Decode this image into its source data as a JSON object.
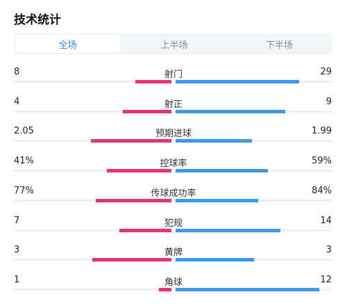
{
  "title": "技术统计",
  "tabs": [
    {
      "label": "全场",
      "active": true
    },
    {
      "label": "上半场",
      "active": false
    },
    {
      "label": "下半场",
      "active": false
    }
  ],
  "colors": {
    "home": "#e8336b",
    "away": "#3b99eb",
    "accent": "#2d8cf0"
  },
  "stats": [
    {
      "name": "射门",
      "home": "8",
      "away": "29",
      "home_bar": 0.23,
      "away_bar": 0.79
    },
    {
      "name": "射正",
      "home": "4",
      "away": "9",
      "home_bar": 0.31,
      "away_bar": 0.7
    },
    {
      "name": "预期进球",
      "home": "2.05",
      "away": "1.99",
      "home_bar": 0.51,
      "away_bar": 0.49
    },
    {
      "name": "控球率",
      "home": "41%",
      "away": "59%",
      "home_bar": 0.41,
      "away_bar": 0.59
    },
    {
      "name": "传球成功率",
      "home": "77%",
      "away": "84%",
      "home_bar": 0.48,
      "away_bar": 0.53
    },
    {
      "name": "犯规",
      "home": "7",
      "away": "14",
      "home_bar": 0.33,
      "away_bar": 0.67
    },
    {
      "name": "黄牌",
      "home": "3",
      "away": "3",
      "home_bar": 0.5,
      "away_bar": 0.5
    },
    {
      "name": "角球",
      "home": "1",
      "away": "12",
      "home_bar": 0.08,
      "away_bar": 0.92
    }
  ]
}
